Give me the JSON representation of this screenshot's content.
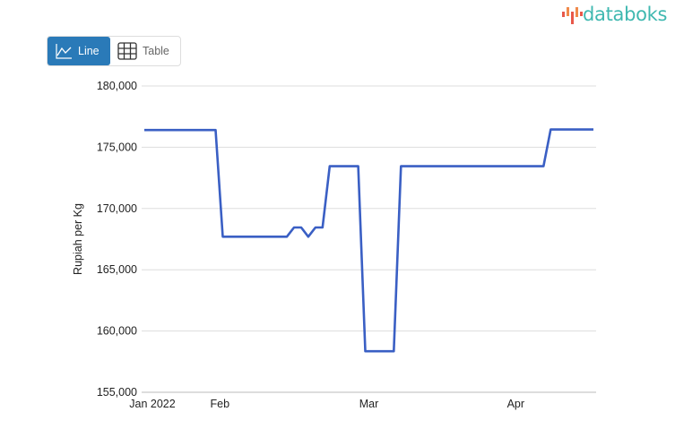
{
  "brand": {
    "name": "databoks",
    "color": "#3fb8b0"
  },
  "view_toggle": {
    "options": [
      {
        "label": "Line",
        "icon": "line-chart-icon",
        "active": true
      },
      {
        "label": "Table",
        "icon": "table-grid-icon",
        "active": false
      }
    ],
    "active_color": "#2a7ab8"
  },
  "chart_data": {
    "type": "line",
    "title": "",
    "xlabel": "",
    "ylabel": "Rupiah per Kg",
    "ylim": [
      155000,
      180000
    ],
    "yticks": [
      155000,
      160000,
      165000,
      170000,
      175000,
      180000
    ],
    "ytick_labels": [
      "155,000",
      "160,000",
      "165,000",
      "170,000",
      "175,000",
      "180,000"
    ],
    "xticks": [
      {
        "label": "Jan 2022",
        "at": 0
      },
      {
        "label": "Feb",
        "at": 10.6
      },
      {
        "label": "Mar",
        "at": 31.5
      },
      {
        "label": "Apr",
        "at": 52.1
      }
    ],
    "grid": true,
    "line_color": "#3a5fc4",
    "series": [
      {
        "values": [
          176400,
          176400,
          176400,
          176400,
          176400,
          176400,
          176400,
          176400,
          176400,
          176400,
          176400,
          167700,
          167700,
          167700,
          167700,
          167700,
          167700,
          167700,
          167700,
          167700,
          167700,
          168450,
          168450,
          167700,
          168450,
          168450,
          173450,
          173450,
          173450,
          173450,
          173450,
          158350,
          158350,
          158350,
          158350,
          158350,
          173450,
          173450,
          173450,
          173450,
          173450,
          173450,
          173450,
          173450,
          173450,
          173450,
          173450,
          173450,
          173450,
          173450,
          173450,
          173450,
          173450,
          173450,
          173450,
          173450,
          173450,
          176450,
          176450,
          176450,
          176450,
          176450,
          176450,
          176450
        ]
      }
    ]
  }
}
